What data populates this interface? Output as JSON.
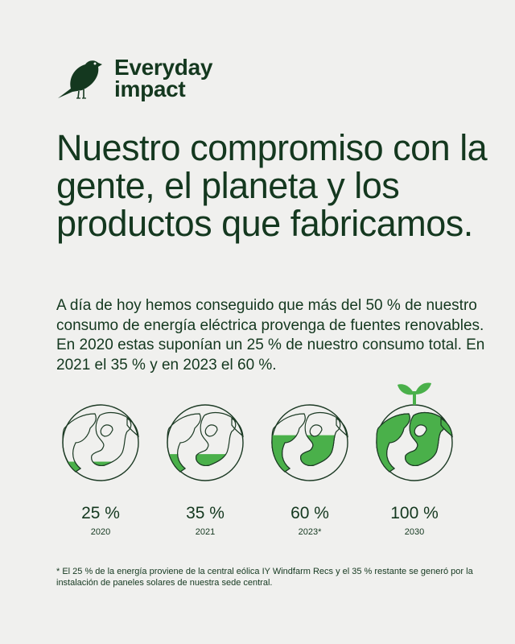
{
  "brand": {
    "line1": "Everyday",
    "line2": "impact",
    "logo_icon": "bird-icon"
  },
  "headline": "Nuestro compromiso con la gente, el planeta y los productos que fabricamos.",
  "body": "A día de hoy hemos conseguido que más del 50 % de nuestro consumo de energía eléctrica provenga de fuentes renovables. En 2020 estas suponían un 25 % de nuestro consumo total. En 2021 el 35 % y en 2023 el 60 %.",
  "globes": [
    {
      "percent": "25 %",
      "year": "2020",
      "fill": 0.25,
      "icon": "globe-icon"
    },
    {
      "percent": "35 %",
      "year": "2021",
      "fill": 0.35,
      "icon": "globe-icon"
    },
    {
      "percent": "60 %",
      "year": "2023*",
      "fill": 0.6,
      "icon": "globe-icon"
    },
    {
      "percent": "100 %",
      "year": "2030",
      "fill": 1.0,
      "icon": "globe-sprout-icon"
    }
  ],
  "footnote": "* El 25 % de la energía proviene de la central eólica IY Windfarm Recs y el 35 % restante se generó por la instalación de paneles solares de nuestra sede central.",
  "colors": {
    "background": "#f0f0ee",
    "text": "#14381f",
    "accent": "#4ab04a",
    "outline": "#1c3a24"
  }
}
